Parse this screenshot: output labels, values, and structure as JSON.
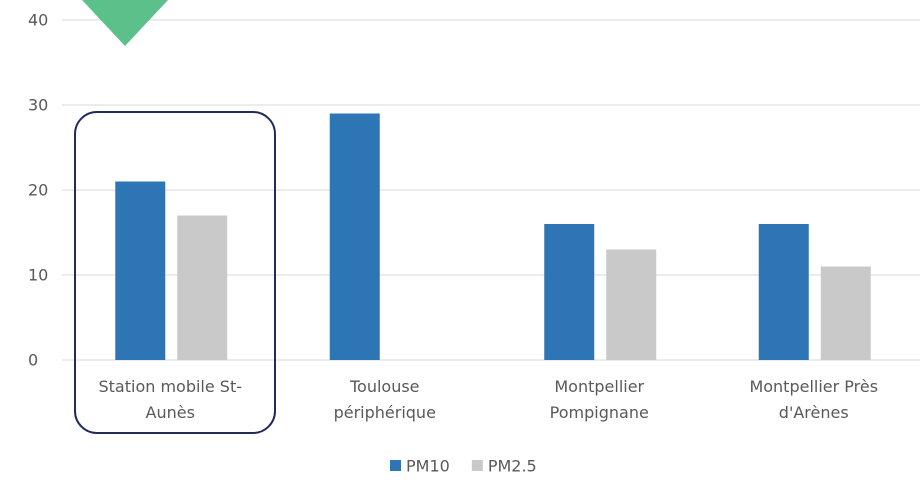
{
  "chart_data": {
    "type": "bar",
    "categories": [
      "Station mobile St-Aunès",
      "Toulouse périphérique",
      "Montpellier Pompignane",
      "Montpellier Près d'Arènes"
    ],
    "series": [
      {
        "name": "PM10",
        "color": "#2e75b6",
        "values": [
          21,
          29,
          16,
          16
        ]
      },
      {
        "name": "PM2.5",
        "color": "#c9c9c9",
        "values": [
          17,
          null,
          13,
          11
        ]
      }
    ],
    "ylim": [
      0,
      40
    ],
    "yticks": [
      0,
      10,
      20,
      30,
      40
    ],
    "grid": true,
    "legend": "bottom"
  }
}
